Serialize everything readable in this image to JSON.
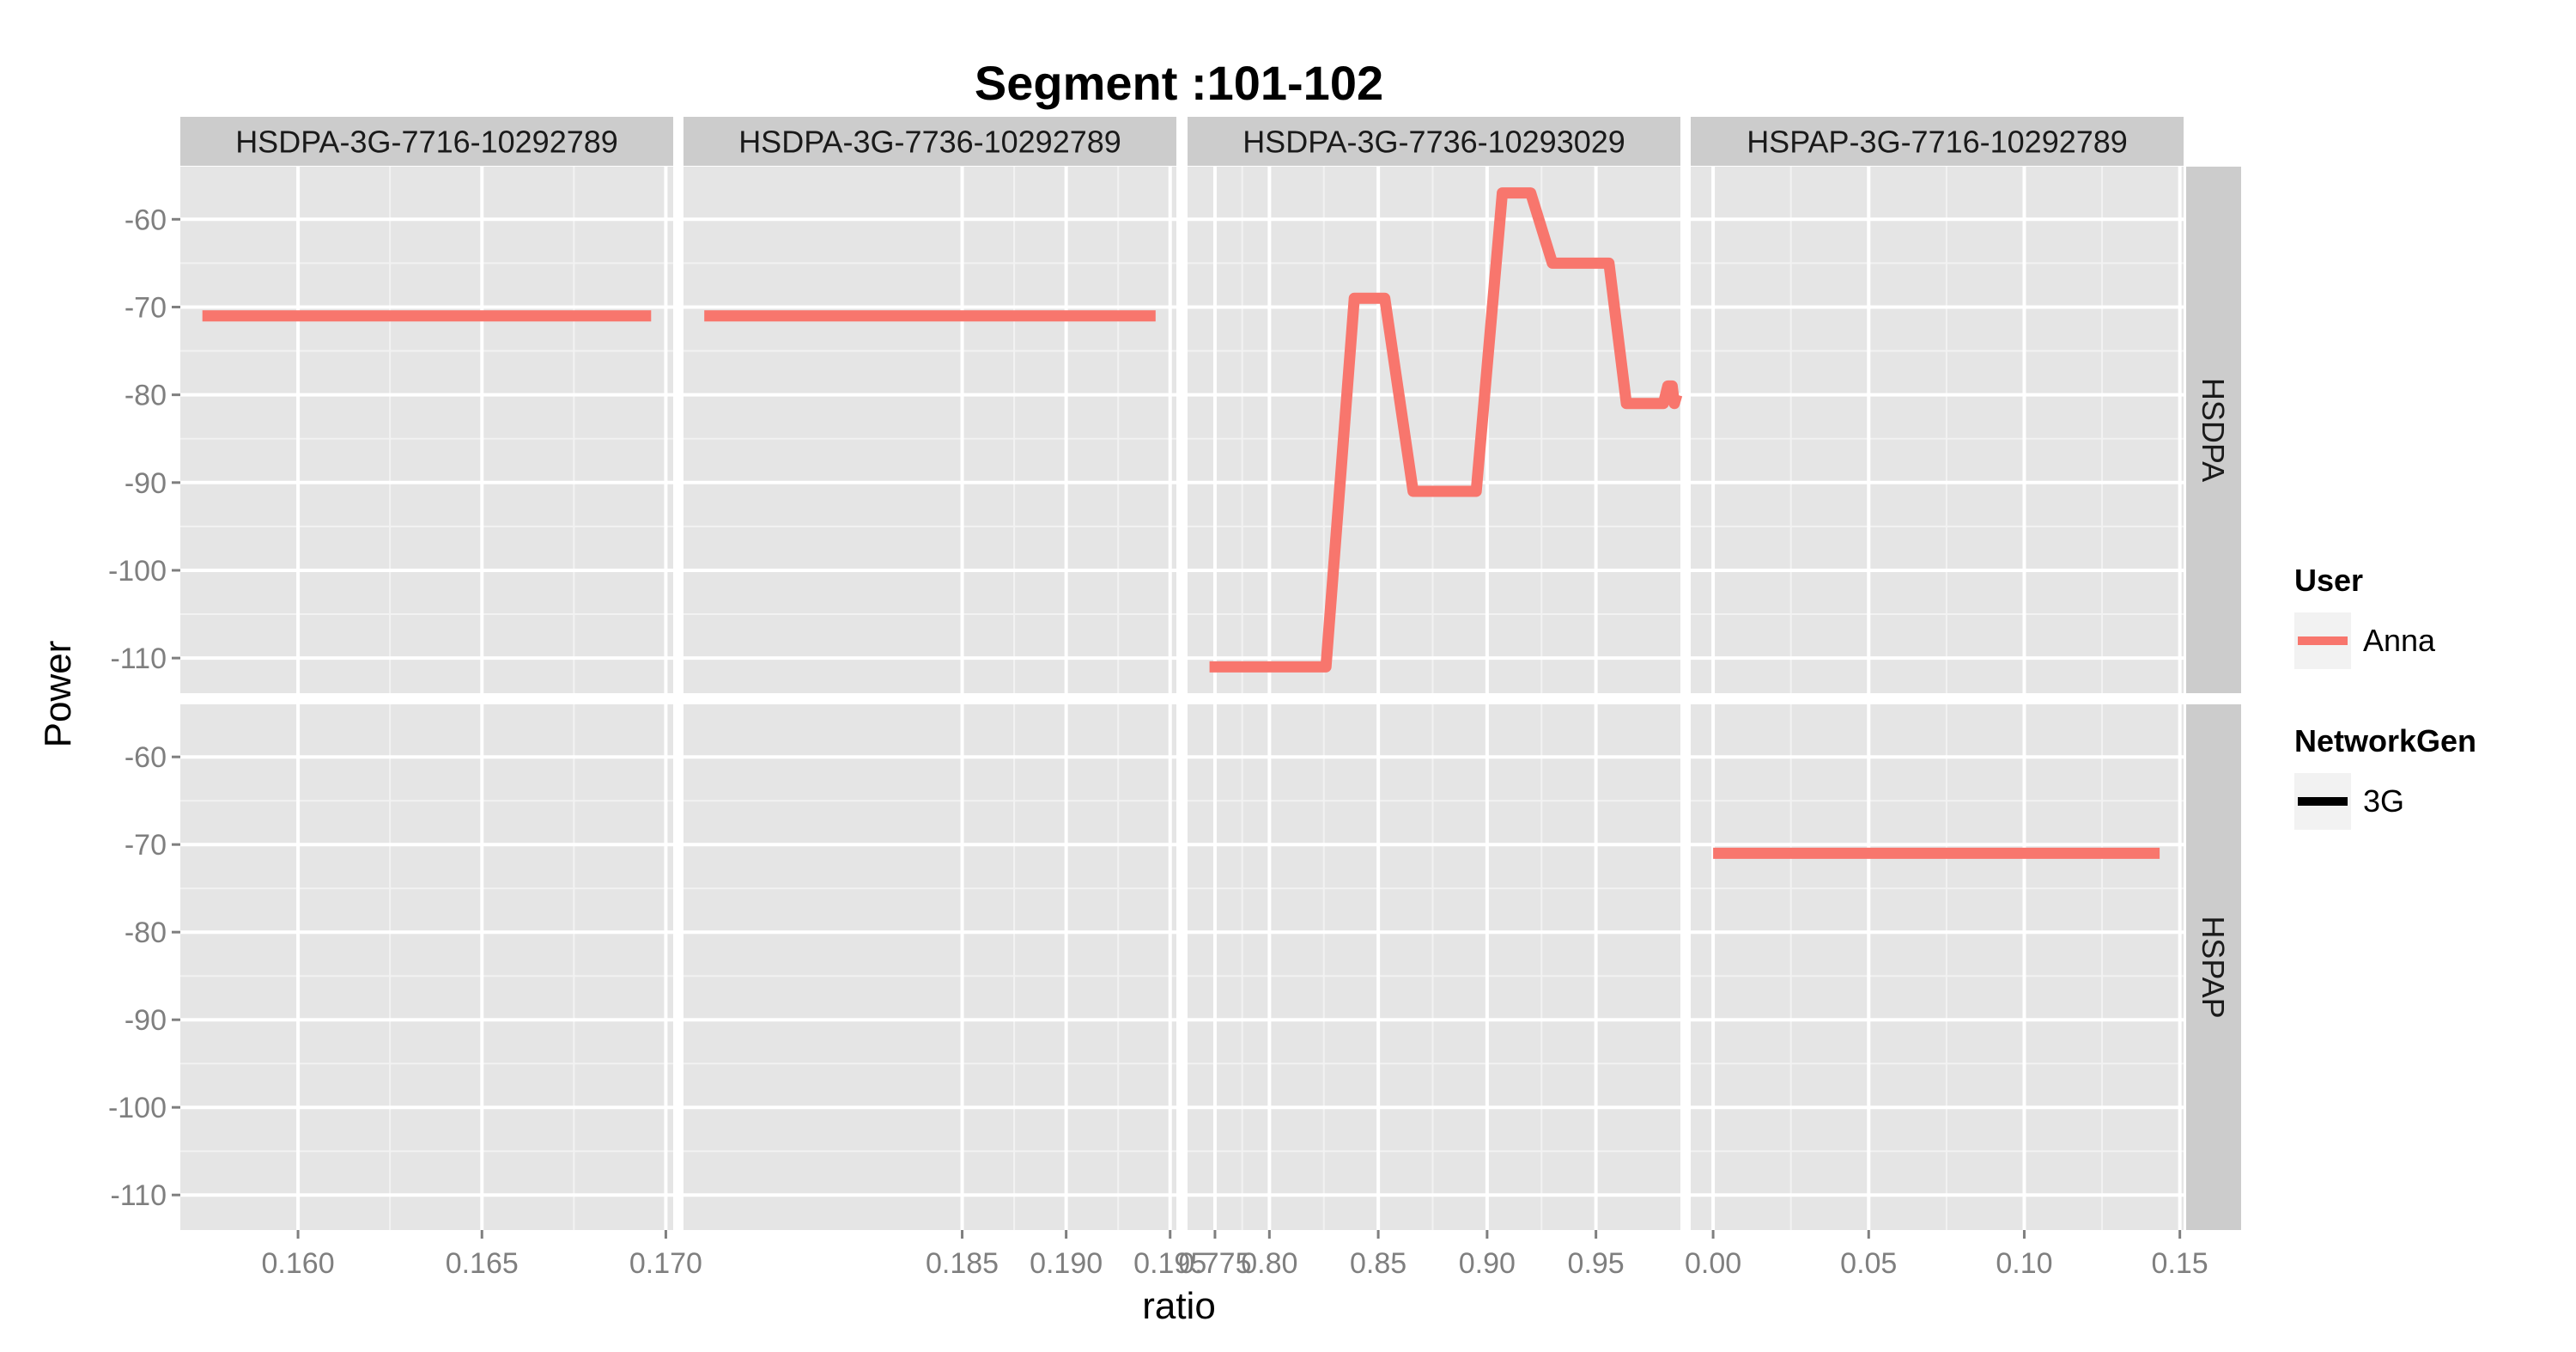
{
  "chart_data": {
    "type": "line",
    "title": "Segment :101-102",
    "xlabel": "ratio",
    "ylabel": "Power",
    "ylim": [
      -114,
      -54
    ],
    "y_ticks": [
      -60,
      -70,
      -80,
      -90,
      -100,
      -110
    ],
    "grid": true,
    "legend_placement": "right",
    "columns": [
      {
        "strip": "HSDPA-3G-7716-10292789",
        "xlim": [
          0.1568,
          0.1702
        ],
        "x_ticks": [
          {
            "value": 0.16,
            "label": "0.160"
          },
          {
            "value": 0.165,
            "label": "0.165"
          },
          {
            "value": 0.17,
            "label": "0.170"
          }
        ]
      },
      {
        "strip": "HSDPA-3G-7736-10292789",
        "xlim": [
          0.1716,
          0.1953
        ],
        "x_ticks": [
          {
            "value": 0.185,
            "label": "0.185"
          },
          {
            "value": 0.19,
            "label": "0.190"
          },
          {
            "value": 0.195,
            "label": "0.195"
          }
        ]
      },
      {
        "strip": "HSDPA-3G-7736-10293029",
        "xlim": [
          0.7624,
          0.9888
        ],
        "x_ticks": [
          {
            "value": 0.775,
            "label": "0.775"
          },
          {
            "value": 0.8,
            "label": "0.80"
          },
          {
            "value": 0.85,
            "label": "0.85"
          },
          {
            "value": 0.9,
            "label": "0.90"
          },
          {
            "value": 0.95,
            "label": "0.95"
          }
        ]
      },
      {
        "strip": "HSPAP-3G-7716-10292789",
        "xlim": [
          -0.0072,
          0.1512
        ],
        "x_ticks": [
          {
            "value": 0.0,
            "label": "0.00"
          },
          {
            "value": 0.05,
            "label": "0.05"
          },
          {
            "value": 0.1,
            "label": "0.10"
          },
          {
            "value": 0.15,
            "label": "0.15"
          }
        ]
      }
    ],
    "rows": [
      {
        "strip": "HSDPA"
      },
      {
        "strip": "HSPAP"
      }
    ],
    "series": [
      {
        "name": "Anna",
        "color": "#f8766d",
        "row": 0,
        "col": 0,
        "points": [
          [
            0.1574,
            -71
          ],
          [
            0.1696,
            -71
          ]
        ]
      },
      {
        "name": "Anna",
        "color": "#f8766d",
        "row": 0,
        "col": 1,
        "points": [
          [
            0.1726,
            -71
          ],
          [
            0.1943,
            -71
          ]
        ]
      },
      {
        "name": "Anna",
        "color": "#f8766d",
        "row": 0,
        "col": 2,
        "points": [
          [
            0.7725,
            -111
          ],
          [
            0.826,
            -111
          ],
          [
            0.839,
            -69
          ],
          [
            0.853,
            -69
          ],
          [
            0.866,
            -91
          ],
          [
            0.895,
            -91
          ],
          [
            0.907,
            -57
          ],
          [
            0.92,
            -57
          ],
          [
            0.93,
            -65
          ],
          [
            0.956,
            -65
          ],
          [
            0.964,
            -81
          ],
          [
            0.981,
            -81
          ],
          [
            0.983,
            -79
          ],
          [
            0.985,
            -79
          ],
          [
            0.986,
            -81
          ],
          [
            0.9872,
            -80
          ]
        ]
      },
      {
        "name": "Anna",
        "color": "#f8766d",
        "row": 1,
        "col": 3,
        "points": [
          [
            0.0,
            -71
          ],
          [
            0.1435,
            -71
          ]
        ]
      }
    ],
    "legend": {
      "user_title": "User",
      "user_entries": [
        {
          "label": "Anna",
          "color": "#f8766d"
        }
      ],
      "network_title": "NetworkGen",
      "network_entries": [
        {
          "label": "3G",
          "color": "#000000"
        }
      ]
    }
  }
}
